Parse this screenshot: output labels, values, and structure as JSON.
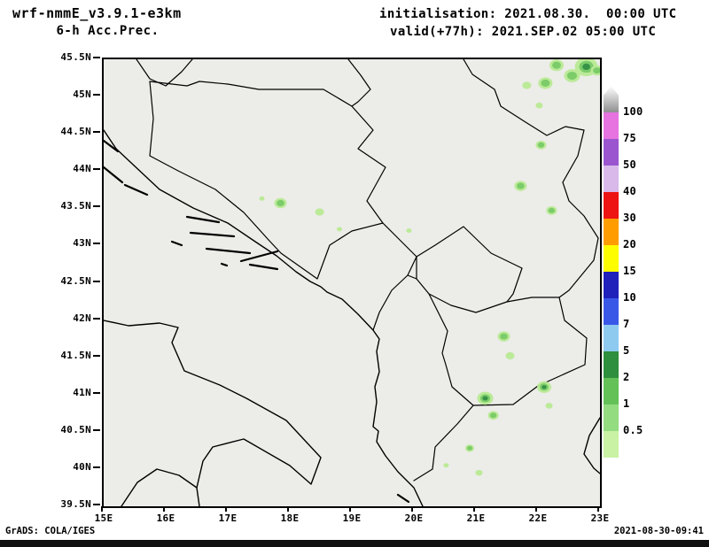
{
  "header": {
    "model": "wrf-nmmE_v3.9.1-e3km",
    "product": "6-h Acc.Prec.",
    "init_line": "initialisation: 2021.08.30.  00:00 UTC",
    "valid_line": "valid(+77h): 2021.SEP.02 05:00 UTC"
  },
  "axes": {
    "y_labels": [
      "45.5N",
      "45N",
      "44.5N",
      "44N",
      "43.5N",
      "43N",
      "42.5N",
      "42N",
      "41.5N",
      "41N",
      "40.5N",
      "40N",
      "39.5N"
    ],
    "x_labels": [
      "15E",
      "16E",
      "17E",
      "18E",
      "19E",
      "20E",
      "21E",
      "22E",
      "23E"
    ],
    "lat_range": [
      39.5,
      45.5
    ],
    "lon_range": [
      15,
      23
    ]
  },
  "colorbar": {
    "labels_top_to_bottom": [
      "100",
      "75",
      "50",
      "40",
      "30",
      "20",
      "15",
      "10",
      "7",
      "5",
      "2",
      "1",
      "0.5"
    ],
    "segments_top_to_bottom": [
      {
        "name": "above-100",
        "color": "gradient-gray"
      },
      {
        "name": "75-100",
        "color": "#e673e0"
      },
      {
        "name": "50-75",
        "color": "#9a55cf"
      },
      {
        "name": "40-50",
        "color": "#d9b8ea"
      },
      {
        "name": "30-40",
        "color": "#ee1414"
      },
      {
        "name": "20-30",
        "color": "#ff9c00"
      },
      {
        "name": "15-20",
        "color": "#fdfd00"
      },
      {
        "name": "10-15",
        "color": "#2020bb"
      },
      {
        "name": "7-10",
        "color": "#3a58e8"
      },
      {
        "name": "5-7",
        "color": "#8ecaf0"
      },
      {
        "name": "2-5",
        "color": "#2e8f3e"
      },
      {
        "name": "1-2",
        "color": "#63c158"
      },
      {
        "name": "0.5-1",
        "color": "#93dc7f"
      },
      {
        "name": "below-0.5",
        "color": "#c9f2a4"
      }
    ]
  },
  "precip": {
    "palette": {
      "light": "#b9ea94",
      "mid": "#77cb64",
      "dark": "#2e8f3e"
    },
    "cells": [
      {
        "lon": 22.78,
        "lat": 45.4,
        "r": 13,
        "tier": 3
      },
      {
        "lon": 22.55,
        "lat": 45.28,
        "r": 9,
        "tier": 2
      },
      {
        "lon": 22.3,
        "lat": 45.42,
        "r": 8,
        "tier": 2
      },
      {
        "lon": 22.95,
        "lat": 45.35,
        "r": 7,
        "tier": 2
      },
      {
        "lon": 22.12,
        "lat": 45.18,
        "r": 8,
        "tier": 2
      },
      {
        "lon": 21.82,
        "lat": 45.15,
        "r": 5,
        "tier": 1
      },
      {
        "lon": 22.02,
        "lat": 44.88,
        "r": 4,
        "tier": 1
      },
      {
        "lon": 22.05,
        "lat": 44.35,
        "r": 6,
        "tier": 2
      },
      {
        "lon": 21.72,
        "lat": 43.8,
        "r": 7,
        "tier": 2
      },
      {
        "lon": 22.22,
        "lat": 43.47,
        "r": 6,
        "tier": 2
      },
      {
        "lon": 17.85,
        "lat": 43.57,
        "r": 7,
        "tier": 2
      },
      {
        "lon": 17.55,
        "lat": 43.63,
        "r": 3,
        "tier": 1
      },
      {
        "lon": 18.48,
        "lat": 43.45,
        "r": 5,
        "tier": 1
      },
      {
        "lon": 18.8,
        "lat": 43.22,
        "r": 3,
        "tier": 1
      },
      {
        "lon": 19.92,
        "lat": 43.2,
        "r": 3,
        "tier": 1
      },
      {
        "lon": 21.45,
        "lat": 41.78,
        "r": 7,
        "tier": 2
      },
      {
        "lon": 21.55,
        "lat": 41.52,
        "r": 5,
        "tier": 1
      },
      {
        "lon": 21.15,
        "lat": 40.95,
        "r": 9,
        "tier": 3
      },
      {
        "lon": 21.28,
        "lat": 40.72,
        "r": 6,
        "tier": 2
      },
      {
        "lon": 22.1,
        "lat": 41.1,
        "r": 8,
        "tier": 3
      },
      {
        "lon": 22.18,
        "lat": 40.85,
        "r": 4,
        "tier": 1
      },
      {
        "lon": 20.9,
        "lat": 40.28,
        "r": 5,
        "tier": 2
      },
      {
        "lon": 21.05,
        "lat": 39.95,
        "r": 4,
        "tier": 1
      },
      {
        "lon": 20.52,
        "lat": 40.05,
        "r": 3,
        "tier": 1
      }
    ]
  },
  "footer": {
    "left": "GrADS: COLA/IGES",
    "right": "2021-08-30-09:41"
  }
}
